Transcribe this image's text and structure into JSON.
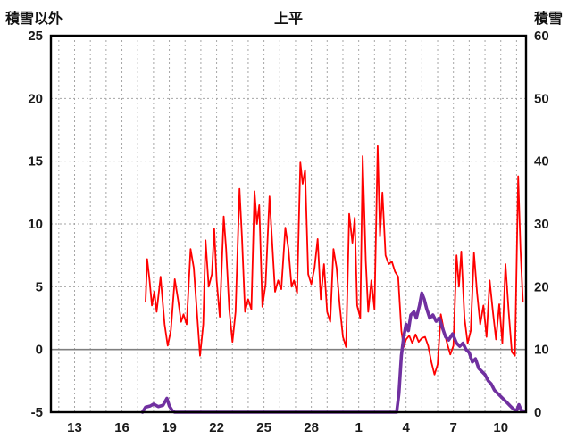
{
  "chart_data": {
    "type": "line",
    "title": "上平",
    "left_axis": {
      "label": "積雪以外",
      "min": -5,
      "max": 25,
      "ticks": [
        -5,
        0,
        5,
        10,
        15,
        20,
        25
      ]
    },
    "right_axis": {
      "label": "積雪",
      "min": 0,
      "max": 60,
      "ticks": [
        0,
        10,
        20,
        30,
        40,
        50,
        60
      ]
    },
    "x_axis": {
      "min": 11.5,
      "max": 41.6,
      "unit": "day of month (continuous numbering, 31 = day 1 of next month)",
      "tick_positions": [
        13,
        16,
        19,
        22,
        25,
        28,
        31,
        34,
        37,
        40
      ],
      "tick_labels": [
        "13",
        "16",
        "19",
        "22",
        "25",
        "28",
        "1",
        "4",
        "7",
        "10"
      ],
      "grid_every_day": true
    },
    "zero_line_left_value": 0,
    "grid": {
      "color": "#a6a6a6",
      "dash": "2 3"
    },
    "frame_color": "#000000",
    "legend": "none",
    "series": [
      {
        "key": "non-snow",
        "name": "積雪以外",
        "axis": "left",
        "color": "#ff0000",
        "width": 1.8,
        "points": [
          [
            17.5,
            3.8
          ],
          [
            17.6,
            7.2
          ],
          [
            17.75,
            5.5
          ],
          [
            17.9,
            3.5
          ],
          [
            18.05,
            4.6
          ],
          [
            18.2,
            3.0
          ],
          [
            18.45,
            5.8
          ],
          [
            18.7,
            2.0
          ],
          [
            18.9,
            0.3
          ],
          [
            19.1,
            1.5
          ],
          [
            19.35,
            5.6
          ],
          [
            19.55,
            4.0
          ],
          [
            19.75,
            2.2
          ],
          [
            19.9,
            2.8
          ],
          [
            20.1,
            2.0
          ],
          [
            20.35,
            8.0
          ],
          [
            20.55,
            6.5
          ],
          [
            20.75,
            3.0
          ],
          [
            20.95,
            -0.5
          ],
          [
            21.15,
            2.0
          ],
          [
            21.3,
            8.7
          ],
          [
            21.5,
            5.0
          ],
          [
            21.7,
            6.0
          ],
          [
            21.85,
            9.6
          ],
          [
            22.0,
            5.5
          ],
          [
            22.2,
            2.6
          ],
          [
            22.45,
            10.6
          ],
          [
            22.6,
            8.0
          ],
          [
            22.8,
            3.2
          ],
          [
            23.0,
            0.6
          ],
          [
            23.2,
            3.0
          ],
          [
            23.45,
            12.8
          ],
          [
            23.6,
            9.0
          ],
          [
            23.8,
            3.0
          ],
          [
            24.0,
            4.0
          ],
          [
            24.2,
            3.2
          ],
          [
            24.4,
            12.6
          ],
          [
            24.55,
            10.0
          ],
          [
            24.7,
            11.5
          ],
          [
            24.9,
            3.4
          ],
          [
            25.1,
            5.2
          ],
          [
            25.35,
            12.2
          ],
          [
            25.5,
            9.0
          ],
          [
            25.7,
            4.6
          ],
          [
            25.9,
            5.5
          ],
          [
            26.1,
            4.8
          ],
          [
            26.35,
            9.7
          ],
          [
            26.55,
            8.0
          ],
          [
            26.75,
            5.0
          ],
          [
            26.9,
            5.5
          ],
          [
            27.1,
            4.5
          ],
          [
            27.3,
            14.9
          ],
          [
            27.45,
            13.2
          ],
          [
            27.6,
            14.3
          ],
          [
            27.8,
            6.0
          ],
          [
            28.0,
            5.2
          ],
          [
            28.2,
            6.5
          ],
          [
            28.4,
            8.8
          ],
          [
            28.6,
            4.0
          ],
          [
            28.8,
            6.8
          ],
          [
            29.0,
            3.0
          ],
          [
            29.2,
            2.2
          ],
          [
            29.4,
            8.0
          ],
          [
            29.6,
            6.5
          ],
          [
            29.8,
            3.5
          ],
          [
            30.0,
            1.0
          ],
          [
            30.2,
            0.2
          ],
          [
            30.4,
            10.8
          ],
          [
            30.6,
            8.5
          ],
          [
            30.75,
            10.5
          ],
          [
            30.9,
            3.5
          ],
          [
            31.1,
            2.5
          ],
          [
            31.25,
            15.4
          ],
          [
            31.45,
            7.0
          ],
          [
            31.6,
            3.0
          ],
          [
            31.8,
            5.5
          ],
          [
            32.0,
            3.2
          ],
          [
            32.2,
            16.2
          ],
          [
            32.35,
            9.0
          ],
          [
            32.5,
            12.5
          ],
          [
            32.7,
            7.5
          ],
          [
            32.9,
            6.8
          ],
          [
            33.1,
            7.0
          ],
          [
            33.3,
            6.2
          ],
          [
            33.5,
            5.8
          ],
          [
            33.7,
            1.5
          ],
          [
            33.85,
            0.2
          ],
          [
            34.0,
            0.8
          ],
          [
            34.2,
            1.1
          ],
          [
            34.4,
            0.5
          ],
          [
            34.6,
            1.2
          ],
          [
            34.8,
            0.6
          ],
          [
            35.0,
            0.9
          ],
          [
            35.2,
            1.0
          ],
          [
            35.4,
            0.3
          ],
          [
            35.6,
            -1.0
          ],
          [
            35.8,
            -2.0
          ],
          [
            36.0,
            -1.2
          ],
          [
            36.2,
            2.8
          ],
          [
            36.4,
            1.5
          ],
          [
            36.6,
            0.5
          ],
          [
            36.8,
            -0.4
          ],
          [
            37.0,
            0.3
          ],
          [
            37.2,
            7.5
          ],
          [
            37.35,
            5.0
          ],
          [
            37.5,
            7.8
          ],
          [
            37.7,
            2.5
          ],
          [
            37.9,
            0.5
          ],
          [
            38.1,
            1.5
          ],
          [
            38.3,
            7.7
          ],
          [
            38.5,
            4.5
          ],
          [
            38.7,
            2.0
          ],
          [
            38.9,
            3.5
          ],
          [
            39.1,
            1.0
          ],
          [
            39.3,
            5.5
          ],
          [
            39.5,
            3.0
          ],
          [
            39.7,
            0.8
          ],
          [
            39.9,
            3.6
          ],
          [
            40.1,
            0.5
          ],
          [
            40.3,
            6.8
          ],
          [
            40.5,
            3.0
          ],
          [
            40.7,
            -0.2
          ],
          [
            40.9,
            -0.5
          ],
          [
            41.1,
            13.8
          ],
          [
            41.25,
            8.0
          ],
          [
            41.4,
            3.8
          ]
        ]
      },
      {
        "key": "snow-depth",
        "name": "積雪",
        "axis": "right",
        "color": "#7030a0",
        "width": 3.6,
        "points": [
          [
            17.3,
            0
          ],
          [
            17.5,
            0.8
          ],
          [
            17.8,
            1.0
          ],
          [
            18.0,
            1.3
          ],
          [
            18.3,
            0.9
          ],
          [
            18.6,
            1.1
          ],
          [
            18.85,
            2.2
          ],
          [
            19.0,
            1.0
          ],
          [
            19.2,
            0.2
          ],
          [
            19.35,
            0
          ],
          [
            33.4,
            0
          ],
          [
            33.55,
            3.0
          ],
          [
            33.7,
            9.0
          ],
          [
            33.85,
            12.0
          ],
          [
            34.0,
            14.0
          ],
          [
            34.15,
            13.0
          ],
          [
            34.3,
            15.5
          ],
          [
            34.5,
            16.0
          ],
          [
            34.65,
            15.0
          ],
          [
            34.85,
            17.0
          ],
          [
            35.0,
            19.0
          ],
          [
            35.15,
            18.0
          ],
          [
            35.3,
            16.5
          ],
          [
            35.5,
            15.0
          ],
          [
            35.7,
            15.5
          ],
          [
            35.9,
            14.5
          ],
          [
            36.1,
            15.0
          ],
          [
            36.3,
            13.5
          ],
          [
            36.5,
            12.0
          ],
          [
            36.7,
            11.5
          ],
          [
            36.95,
            12.5
          ],
          [
            37.2,
            11.0
          ],
          [
            37.4,
            10.5
          ],
          [
            37.6,
            11.0
          ],
          [
            37.8,
            10.0
          ],
          [
            38.0,
            9.5
          ],
          [
            38.2,
            8.0
          ],
          [
            38.4,
            8.5
          ],
          [
            38.6,
            7.0
          ],
          [
            38.8,
            6.5
          ],
          [
            39.0,
            6.0
          ],
          [
            39.2,
            5.0
          ],
          [
            39.4,
            4.5
          ],
          [
            39.6,
            3.5
          ],
          [
            39.8,
            3.0
          ],
          [
            40.0,
            2.5
          ],
          [
            40.2,
            2.0
          ],
          [
            40.4,
            1.5
          ],
          [
            40.6,
            1.0
          ],
          [
            40.8,
            0.5
          ],
          [
            41.0,
            0.2
          ],
          [
            41.15,
            1.2
          ],
          [
            41.3,
            0.3
          ],
          [
            41.45,
            0.2
          ]
        ]
      }
    ]
  }
}
